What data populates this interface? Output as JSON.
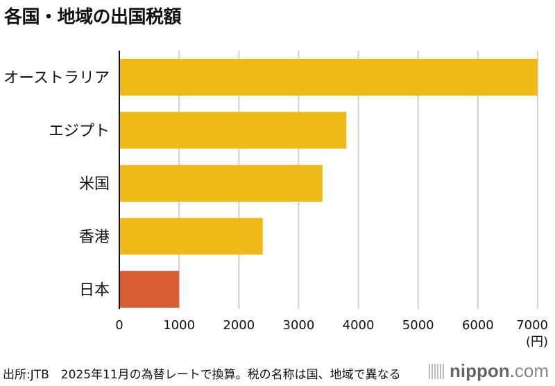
{
  "title": "各国・地域の出国税額",
  "footer": {
    "source": "出所:JTB　2025年11月の為替レートで換算。税の名称は国、地域で異なる",
    "logo": {
      "name": "nippon",
      "dot": ".",
      "tld": "com"
    }
  },
  "chart_data": {
    "type": "bar",
    "orientation": "horizontal",
    "title": "各国・地域の出国税額",
    "categories": [
      "オーストラリア",
      "エジプト",
      "米国",
      "香港",
      "日本"
    ],
    "values": [
      7000,
      3800,
      3400,
      2400,
      1000
    ],
    "colors": [
      "#F0B915",
      "#F0B915",
      "#F0B915",
      "#F0B915",
      "#DA5E33"
    ],
    "xlabel": "(円)",
    "xlim": [
      0,
      7000
    ],
    "xticks": [
      0,
      1000,
      2000,
      3000,
      4000,
      5000,
      6000,
      7000
    ],
    "grid": true
  }
}
